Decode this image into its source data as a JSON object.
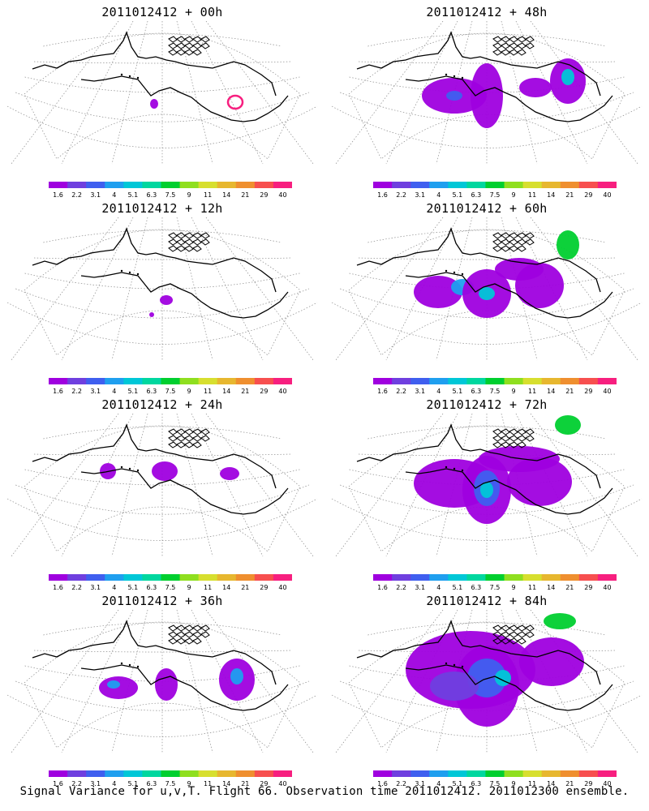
{
  "panels": [
    {
      "title": "2011012412 + 00h",
      "lead_hours": 0
    },
    {
      "title": "2011012412 + 48h",
      "lead_hours": 48
    },
    {
      "title": "2011012412 + 12h",
      "lead_hours": 12
    },
    {
      "title": "2011012412 + 60h",
      "lead_hours": 60
    },
    {
      "title": "2011012412 + 24h",
      "lead_hours": 24
    },
    {
      "title": "2011012412 + 72h",
      "lead_hours": 72
    },
    {
      "title": "2011012412 + 36h",
      "lead_hours": 36
    },
    {
      "title": "2011012412 + 84h",
      "lead_hours": 84
    }
  ],
  "colorbar": {
    "labels": [
      "1.6",
      "2.2",
      "3.1",
      "4",
      "5.1",
      "6.3",
      "7.5",
      "9",
      "11",
      "14",
      "21",
      "29",
      "40"
    ],
    "colors": [
      "#9f00df",
      "#6f3fdf",
      "#3f5fef",
      "#1f9fef",
      "#00c7d7",
      "#00d79f",
      "#00cf2f",
      "#8fdf1f",
      "#d7df2f",
      "#e7b72f",
      "#ef8f2f",
      "#f74f4f",
      "#f71f7f"
    ]
  },
  "caption": "Signal Variance for u,v,T. Flight 66. Observation time 2011012412. 2011012300 ensemble."
}
